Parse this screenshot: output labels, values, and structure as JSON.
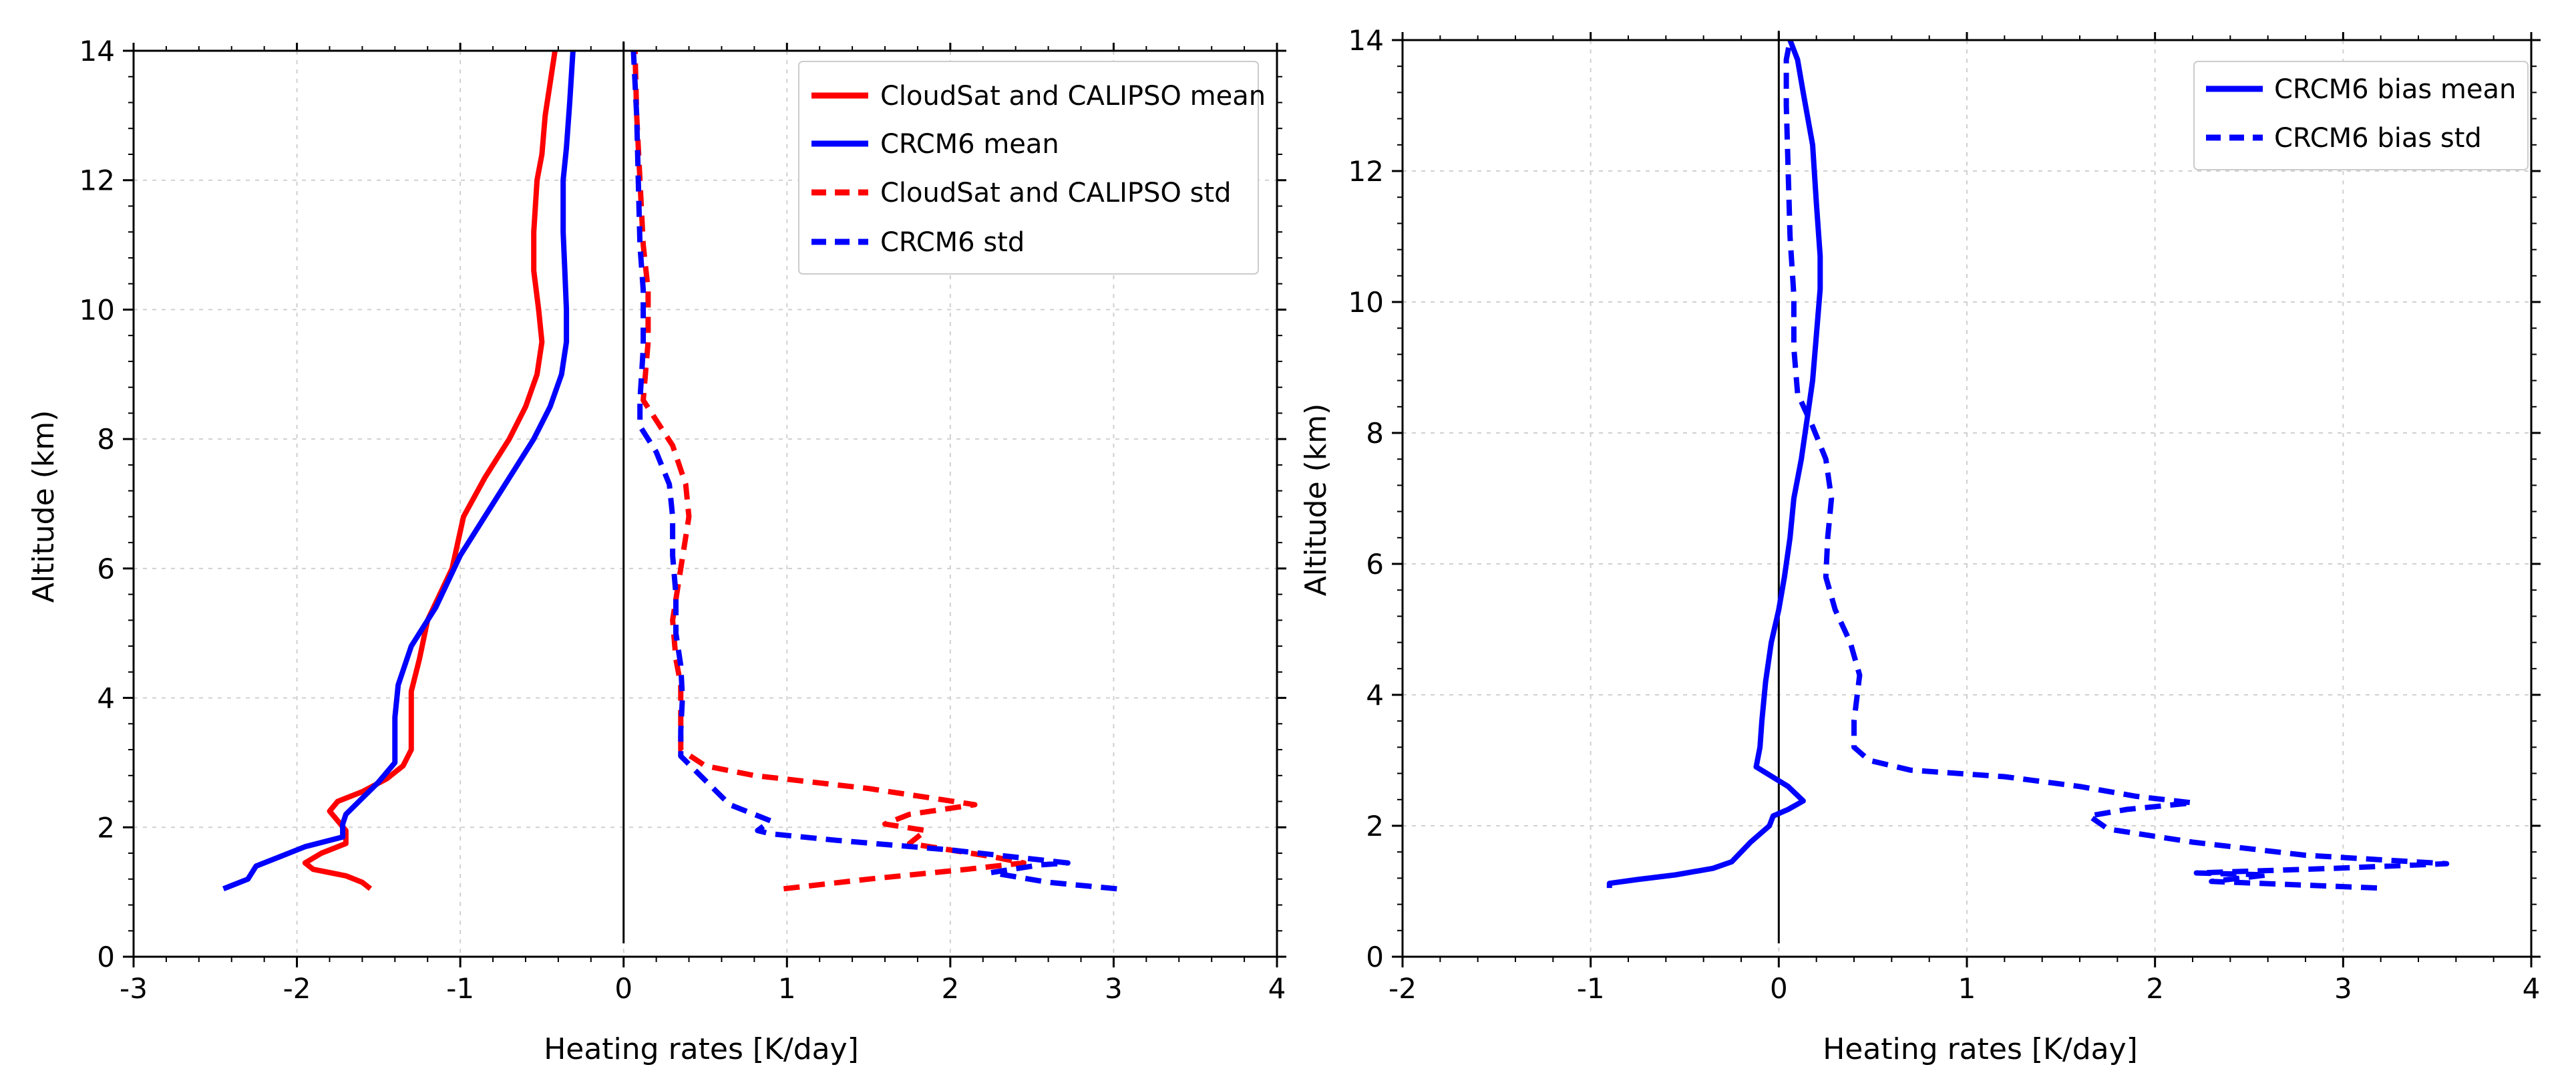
{
  "chart_data": [
    {
      "type": "line",
      "title": "",
      "xlabel": "Heating rates [K/day]",
      "ylabel": "Altitude (km)",
      "xlim": [
        -3,
        4
      ],
      "ylim": [
        0,
        14
      ],
      "xticks": [
        "-3",
        "-2",
        "-1",
        "0",
        "1",
        "2",
        "3",
        "4"
      ],
      "yticks": [
        "0",
        "2",
        "4",
        "6",
        "8",
        "10",
        "12",
        "14"
      ],
      "grid": true,
      "legend_position": "top-right",
      "reference_line_x": 0,
      "series": [
        {
          "name": "CloudSat and CALIPSO mean",
          "color": "#ff0000",
          "dash": "solid",
          "points": [
            [
              -1.55,
              1.05
            ],
            [
              -1.6,
              1.15
            ],
            [
              -1.7,
              1.25
            ],
            [
              -1.9,
              1.35
            ],
            [
              -1.95,
              1.45
            ],
            [
              -1.85,
              1.6
            ],
            [
              -1.7,
              1.75
            ],
            [
              -1.7,
              1.95
            ],
            [
              -1.75,
              2.1
            ],
            [
              -1.8,
              2.25
            ],
            [
              -1.75,
              2.4
            ],
            [
              -1.6,
              2.55
            ],
            [
              -1.45,
              2.75
            ],
            [
              -1.35,
              2.95
            ],
            [
              -1.3,
              3.2
            ],
            [
              -1.3,
              3.6
            ],
            [
              -1.3,
              4.1
            ],
            [
              -1.25,
              4.6
            ],
            [
              -1.2,
              5.2
            ],
            [
              -1.05,
              6.0
            ],
            [
              -0.98,
              6.8
            ],
            [
              -0.85,
              7.4
            ],
            [
              -0.7,
              8.0
            ],
            [
              -0.6,
              8.5
            ],
            [
              -0.53,
              9.0
            ],
            [
              -0.5,
              9.5
            ],
            [
              -0.52,
              10.0
            ],
            [
              -0.55,
              10.6
            ],
            [
              -0.55,
              11.2
            ],
            [
              -0.53,
              12.0
            ],
            [
              -0.5,
              12.4
            ],
            [
              -0.48,
              13.0
            ],
            [
              -0.45,
              13.5
            ],
            [
              -0.42,
              14.0
            ]
          ]
        },
        {
          "name": "CRCM6 mean",
          "color": "#0000ff",
          "dash": "solid",
          "points": [
            [
              -2.45,
              1.05
            ],
            [
              -2.4,
              1.1
            ],
            [
              -2.3,
              1.2
            ],
            [
              -2.25,
              1.4
            ],
            [
              -2.1,
              1.55
            ],
            [
              -1.95,
              1.7
            ],
            [
              -1.72,
              1.85
            ],
            [
              -1.72,
              2.05
            ],
            [
              -1.7,
              2.2
            ],
            [
              -1.6,
              2.45
            ],
            [
              -1.5,
              2.7
            ],
            [
              -1.4,
              3.0
            ],
            [
              -1.4,
              3.3
            ],
            [
              -1.4,
              3.7
            ],
            [
              -1.38,
              4.2
            ],
            [
              -1.3,
              4.8
            ],
            [
              -1.15,
              5.4
            ],
            [
              -1.0,
              6.2
            ],
            [
              -0.85,
              6.8
            ],
            [
              -0.7,
              7.4
            ],
            [
              -0.55,
              8.0
            ],
            [
              -0.45,
              8.5
            ],
            [
              -0.38,
              9.0
            ],
            [
              -0.35,
              9.5
            ],
            [
              -0.35,
              10.0
            ],
            [
              -0.36,
              10.6
            ],
            [
              -0.37,
              11.2
            ],
            [
              -0.37,
              12.0
            ],
            [
              -0.35,
              12.5
            ],
            [
              -0.33,
              13.2
            ],
            [
              -0.31,
              14.0
            ]
          ]
        },
        {
          "name": "CloudSat and CALIPSO std",
          "color": "#ff0000",
          "dash": "dashed",
          "points": [
            [
              0.98,
              1.05
            ],
            [
              1.5,
              1.2
            ],
            [
              2.1,
              1.35
            ],
            [
              2.45,
              1.45
            ],
            [
              2.25,
              1.55
            ],
            [
              1.75,
              1.75
            ],
            [
              1.85,
              1.95
            ],
            [
              1.6,
              2.05
            ],
            [
              1.75,
              2.2
            ],
            [
              2.15,
              2.35
            ],
            [
              1.5,
              2.6
            ],
            [
              0.8,
              2.8
            ],
            [
              0.5,
              2.95
            ],
            [
              0.35,
              3.2
            ],
            [
              0.35,
              3.6
            ],
            [
              0.35,
              4.2
            ],
            [
              0.32,
              4.6
            ],
            [
              0.3,
              5.2
            ],
            [
              0.35,
              6.0
            ],
            [
              0.4,
              6.8
            ],
            [
              0.38,
              7.3
            ],
            [
              0.3,
              7.9
            ],
            [
              0.12,
              8.6
            ],
            [
              0.15,
              9.5
            ],
            [
              0.15,
              10.3
            ],
            [
              0.12,
              11.0
            ],
            [
              0.1,
              12.0
            ],
            [
              0.08,
              13.0
            ],
            [
              0.07,
              14.0
            ]
          ]
        },
        {
          "name": "CRCM6 std",
          "color": "#0000ff",
          "dash": "dashed",
          "points": [
            [
              3.02,
              1.05
            ],
            [
              2.6,
              1.15
            ],
            [
              2.25,
              1.3
            ],
            [
              2.55,
              1.42
            ],
            [
              2.72,
              1.45
            ],
            [
              2.0,
              1.65
            ],
            [
              1.3,
              1.8
            ],
            [
              0.9,
              1.9
            ],
            [
              0.82,
              1.95
            ],
            [
              0.9,
              2.1
            ],
            [
              0.8,
              2.2
            ],
            [
              0.65,
              2.35
            ],
            [
              0.55,
              2.6
            ],
            [
              0.45,
              2.85
            ],
            [
              0.35,
              3.1
            ],
            [
              0.35,
              3.5
            ],
            [
              0.36,
              4.0
            ],
            [
              0.35,
              4.5
            ],
            [
              0.32,
              5.0
            ],
            [
              0.32,
              5.6
            ],
            [
              0.3,
              6.2
            ],
            [
              0.3,
              6.8
            ],
            [
              0.28,
              7.3
            ],
            [
              0.2,
              7.8
            ],
            [
              0.1,
              8.2
            ],
            [
              0.1,
              8.6
            ],
            [
              0.12,
              9.4
            ],
            [
              0.12,
              10.3
            ],
            [
              0.1,
              11.0
            ],
            [
              0.09,
              12.0
            ],
            [
              0.08,
              13.0
            ],
            [
              0.06,
              14.0
            ]
          ]
        }
      ]
    },
    {
      "type": "line",
      "title": "",
      "xlabel": "Heating rates [K/day]",
      "ylabel": "Altitude (km)",
      "xlim": [
        -2,
        4
      ],
      "ylim": [
        0,
        14
      ],
      "xticks": [
        "-2",
        "-1",
        "0",
        "1",
        "2",
        "3",
        "4"
      ],
      "yticks": [
        "0",
        "2",
        "4",
        "6",
        "8",
        "10",
        "12",
        "14"
      ],
      "grid": true,
      "legend_position": "top-right",
      "reference_line_x": 0,
      "series": [
        {
          "name": "CRCM6 bias mean",
          "color": "#0000ff",
          "dash": "solid",
          "points": [
            [
              -0.9,
              1.05
            ],
            [
              -0.9,
              1.12
            ],
            [
              -0.75,
              1.18
            ],
            [
              -0.55,
              1.25
            ],
            [
              -0.35,
              1.35
            ],
            [
              -0.25,
              1.45
            ],
            [
              -0.15,
              1.75
            ],
            [
              -0.05,
              2.0
            ],
            [
              -0.03,
              2.15
            ],
            [
              0.05,
              2.25
            ],
            [
              0.13,
              2.38
            ],
            [
              0.05,
              2.6
            ],
            [
              -0.12,
              2.9
            ],
            [
              -0.1,
              3.2
            ],
            [
              -0.09,
              3.6
            ],
            [
              -0.07,
              4.2
            ],
            [
              -0.04,
              4.8
            ],
            [
              0.0,
              5.3
            ],
            [
              0.03,
              5.8
            ],
            [
              0.06,
              6.4
            ],
            [
              0.08,
              7.0
            ],
            [
              0.12,
              7.6
            ],
            [
              0.15,
              8.2
            ],
            [
              0.18,
              8.8
            ],
            [
              0.2,
              9.5
            ],
            [
              0.22,
              10.2
            ],
            [
              0.22,
              10.7
            ],
            [
              0.2,
              11.5
            ],
            [
              0.18,
              12.4
            ],
            [
              0.13,
              13.2
            ],
            [
              0.1,
              13.7
            ],
            [
              0.06,
              14.0
            ]
          ]
        },
        {
          "name": "CRCM6 bias std",
          "color": "#0000ff",
          "dash": "dashed",
          "points": [
            [
              3.18,
              1.05
            ],
            [
              2.3,
              1.15
            ],
            [
              2.6,
              1.25
            ],
            [
              2.22,
              1.28
            ],
            [
              2.95,
              1.35
            ],
            [
              3.55,
              1.42
            ],
            [
              2.8,
              1.55
            ],
            [
              2.2,
              1.75
            ],
            [
              1.75,
              1.95
            ],
            [
              1.65,
              2.15
            ],
            [
              1.85,
              2.25
            ],
            [
              2.2,
              2.35
            ],
            [
              1.9,
              2.45
            ],
            [
              1.6,
              2.6
            ],
            [
              1.2,
              2.75
            ],
            [
              0.7,
              2.85
            ],
            [
              0.48,
              3.0
            ],
            [
              0.4,
              3.2
            ],
            [
              0.4,
              3.6
            ],
            [
              0.43,
              4.3
            ],
            [
              0.38,
              4.8
            ],
            [
              0.3,
              5.3
            ],
            [
              0.25,
              5.8
            ],
            [
              0.26,
              6.4
            ],
            [
              0.28,
              7.0
            ],
            [
              0.25,
              7.6
            ],
            [
              0.18,
              8.1
            ],
            [
              0.1,
              8.6
            ],
            [
              0.08,
              9.3
            ],
            [
              0.08,
              10.1
            ],
            [
              0.06,
              11.0
            ],
            [
              0.05,
              12.0
            ],
            [
              0.04,
              13.0
            ],
            [
              0.04,
              13.7
            ],
            [
              0.06,
              14.0
            ]
          ]
        }
      ]
    }
  ]
}
